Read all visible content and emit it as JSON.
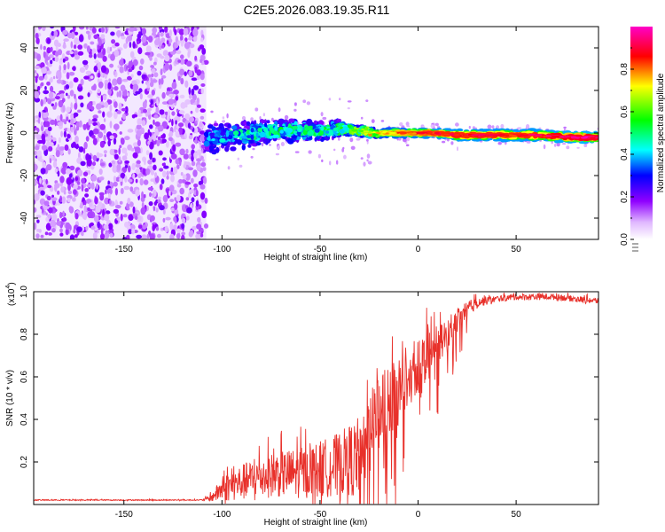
{
  "title": "C2E5.2026.083.19.35.R11",
  "chart_data": [
    {
      "type": "heatmap",
      "name": "spectrogram",
      "xlabel": "Height of straight line (km)",
      "ylabel": "Frequency (Hz)",
      "xlim": [
        -196,
        92
      ],
      "ylim": [
        -50,
        50
      ],
      "xticks": [
        -150,
        -100,
        -50,
        0,
        50
      ],
      "yticks": [
        -40,
        -20,
        0,
        20,
        40
      ],
      "noise_region": {
        "x": [
          -196,
          -108
        ],
        "description": "scattered low-amplitude noise across all frequencies"
      },
      "signal_track": {
        "x": [
          -108,
          -100,
          -90,
          -80,
          -70,
          -60,
          -50,
          -40,
          -30,
          -20,
          -10,
          0,
          10,
          20,
          40,
          60,
          80,
          92
        ],
        "freq": [
          -3,
          -2,
          -1,
          0,
          1,
          1,
          1,
          2,
          1,
          0,
          0,
          0,
          0,
          -1,
          -1,
          -1,
          -2,
          -2
        ],
        "width": [
          14,
          12,
          12,
          11,
          10,
          10,
          9,
          8,
          6,
          4,
          4,
          4,
          4,
          5,
          5,
          5,
          5,
          5
        ],
        "amplitude": [
          0.35,
          0.4,
          0.45,
          0.45,
          0.5,
          0.5,
          0.5,
          0.55,
          0.65,
          0.8,
          0.85,
          0.9,
          0.95,
          0.95,
          0.95,
          0.95,
          1.0,
          1.0
        ]
      },
      "colorbar": {
        "label": "Normalized spectral amplitude",
        "range": [
          0,
          1
        ],
        "ticks": [
          "0.0",
          "0.2",
          "0.4",
          "0.6",
          "0.8"
        ],
        "tick_values": [
          0,
          0.2,
          0.4,
          0.6,
          0.8
        ]
      }
    },
    {
      "type": "line",
      "name": "snr",
      "xlabel": "Height of straight line (km)",
      "ylabel": "SNR (10 * v/v)",
      "scale_label": "(x10",
      "scale_exp": "4",
      "scale_close": ")",
      "xlim": [
        -196,
        92
      ],
      "ylim": [
        0,
        1.0
      ],
      "xticks": [
        -150,
        -100,
        -50,
        0,
        50
      ],
      "yticks": [
        "0.2",
        "0.4",
        "0.6",
        "0.8",
        "1.0"
      ],
      "ytick_values": [
        0.2,
        0.4,
        0.6,
        0.8,
        1.0
      ],
      "color": "#e8302a",
      "series": [
        {
          "name": "SNR envelope",
          "x": [
            -196,
            -110,
            -105,
            -100,
            -90,
            -80,
            -70,
            -60,
            -50,
            -40,
            -30,
            -25,
            -20,
            -15,
            -10,
            -5,
            0,
            5,
            10,
            15,
            20,
            25,
            30,
            40,
            50,
            60,
            70,
            80,
            92
          ],
          "base": [
            0.02,
            0.02,
            0.025,
            0.05,
            0.07,
            0.09,
            0.1,
            0.1,
            0.11,
            0.13,
            0.15,
            0.3,
            0.38,
            0.42,
            0.48,
            0.55,
            0.6,
            0.65,
            0.7,
            0.77,
            0.84,
            0.9,
            0.94,
            0.96,
            0.97,
            0.97,
            0.97,
            0.96,
            0.95
          ],
          "spread": [
            0.005,
            0.005,
            0.04,
            0.12,
            0.17,
            0.2,
            0.22,
            0.24,
            0.27,
            0.3,
            0.38,
            0.3,
            0.35,
            0.35,
            0.35,
            0.3,
            0.28,
            0.25,
            0.2,
            0.15,
            0.12,
            0.08,
            0.05,
            0.03,
            0.03,
            0.03,
            0.03,
            0.03,
            0.03
          ]
        }
      ]
    }
  ]
}
